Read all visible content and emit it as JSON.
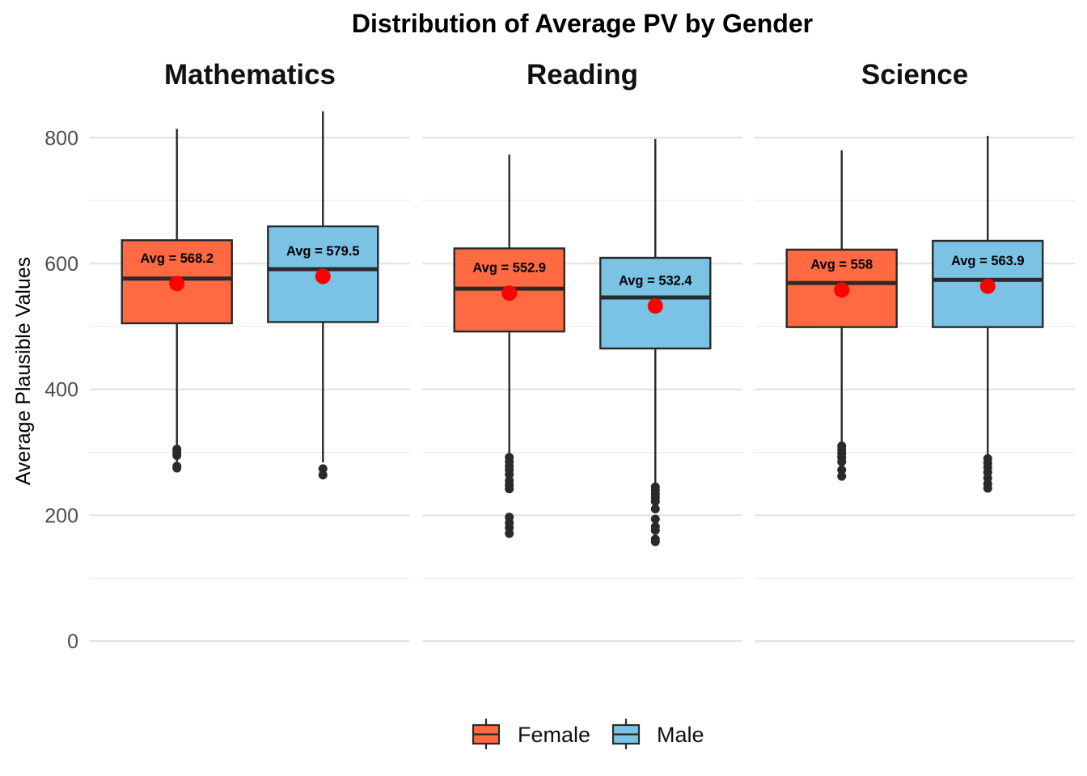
{
  "chart_data": {
    "type": "boxplot",
    "title": "Distribution of Average PV by Gender",
    "ylabel": "Average Plausible Values",
    "xlabel": "",
    "ylim": [
      -55,
      862
    ],
    "yticks": [
      0,
      200,
      400,
      600,
      800
    ],
    "grid": true,
    "legend_position": "bottom",
    "colors": {
      "Female": "#FF6A42",
      "Male": "#7AC3E4",
      "mean_point": "#FF0000",
      "outline": "#2A2A2A"
    },
    "groups": [
      "Female",
      "Male"
    ],
    "facets": [
      {
        "name": "Mathematics",
        "boxes": [
          {
            "group": "Female",
            "q1": 505,
            "median": 576,
            "q3": 637,
            "whisker_low": 283,
            "whisker_high": 814,
            "mean": 568.2,
            "label": "Avg = 568.2",
            "outliers": [
              305,
              300,
              295,
              278,
              275
            ]
          },
          {
            "group": "Male",
            "q1": 507,
            "median": 591,
            "q3": 659,
            "whisker_low": 284,
            "whisker_high": 842,
            "mean": 579.5,
            "label": "Avg = 579.5",
            "outliers": [
              274,
              264
            ]
          }
        ]
      },
      {
        "name": "Reading",
        "boxes": [
          {
            "group": "Female",
            "q1": 492,
            "median": 560,
            "q3": 624,
            "whisker_low": 295,
            "whisker_high": 773,
            "mean": 552.9,
            "label": "Avg = 552.9",
            "outliers": [
              292,
              285,
              278,
              272,
              265,
              255,
              248,
              242,
              197,
              188,
              180,
              171
            ]
          },
          {
            "group": "Male",
            "q1": 465,
            "median": 546,
            "q3": 609,
            "whisker_low": 247,
            "whisker_high": 798,
            "mean": 532.4,
            "label": "Avg = 532.4",
            "outliers": [
              245,
              240,
              234,
              228,
              222,
              210,
              194,
              182,
              176,
              162,
              158
            ]
          }
        ]
      },
      {
        "name": "Science",
        "boxes": [
          {
            "group": "Female",
            "q1": 499,
            "median": 569,
            "q3": 622,
            "whisker_low": 312,
            "whisker_high": 780,
            "mean": 558,
            "label": "Avg = 558",
            "outliers": [
              310,
              304,
              298,
              292,
              285,
              272,
              262
            ]
          },
          {
            "group": "Male",
            "q1": 499,
            "median": 574,
            "q3": 636,
            "whisker_low": 293,
            "whisker_high": 803,
            "mean": 563.9,
            "label": "Avg = 563.9",
            "outliers": [
              290,
              283,
              276,
              268,
              259,
              250,
              243
            ]
          }
        ]
      }
    ]
  }
}
